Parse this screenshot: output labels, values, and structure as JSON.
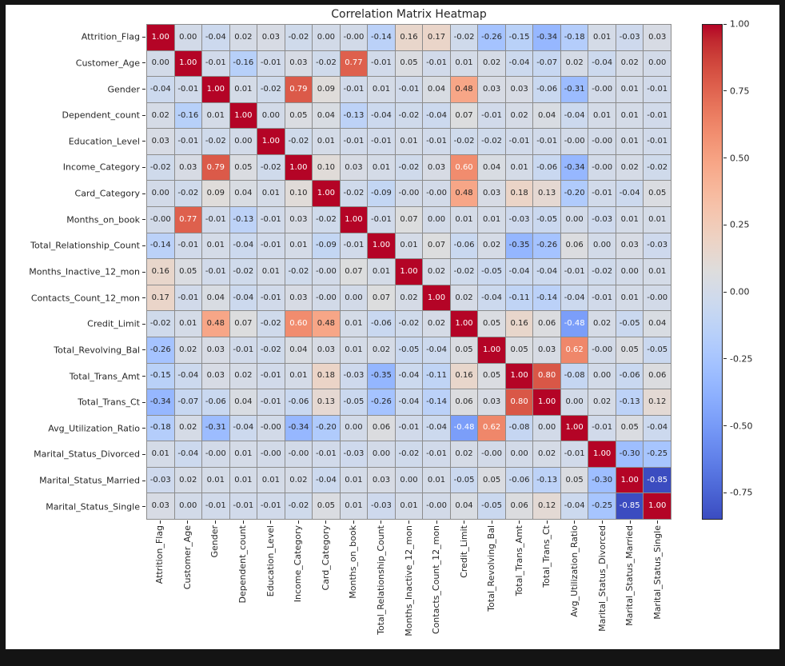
{
  "title": "Correlation Matrix Heatmap",
  "colors": {
    "figure_bg": "#ffffff",
    "frame_bg": "#141414",
    "grid_line": "#8c8c8c",
    "annotation_dark": "#262626",
    "annotation_light": "#ffffff",
    "cmap_min": "#3b4cc0",
    "cmap_mid": "#dddddd",
    "cmap_max": "#b40426"
  },
  "chart_data": {
    "type": "heatmap",
    "title": "Correlation Matrix Heatmap",
    "colormap": "coolwarm",
    "vmin": -0.85,
    "vmax": 1.0,
    "cell_format": ".2f",
    "legend_position": "right-colorbar",
    "colorbar_ticks": [
      "1.00",
      "0.75",
      "0.50",
      "0.25",
      "0.00",
      "-0.25",
      "-0.50",
      "-0.75"
    ],
    "labels": [
      "Attrition_Flag",
      "Customer_Age",
      "Gender",
      "Dependent_count",
      "Education_Level",
      "Income_Category",
      "Card_Category",
      "Months_on_book",
      "Total_Relationship_Count",
      "Months_Inactive_12_mon",
      "Contacts_Count_12_mon",
      "Credit_Limit",
      "Total_Revolving_Bal",
      "Total_Trans_Amt",
      "Total_Trans_Ct",
      "Avg_Utilization_Ratio",
      "Marital_Status_Divorced",
      "Marital_Status_Married",
      "Marital_Status_Single"
    ],
    "matrix": [
      [
        "1.00",
        "0.00",
        "-0.04",
        "0.02",
        "0.03",
        "-0.02",
        "0.00",
        "-0.00",
        "-0.14",
        "0.16",
        "0.17",
        "-0.02",
        "-0.26",
        "-0.15",
        "-0.34",
        "-0.18",
        "0.01",
        "-0.03",
        "0.03"
      ],
      [
        "0.00",
        "1.00",
        "-0.01",
        "-0.16",
        "-0.01",
        "0.03",
        "-0.02",
        "0.77",
        "-0.01",
        "0.05",
        "-0.01",
        "0.01",
        "0.02",
        "-0.04",
        "-0.07",
        "0.02",
        "-0.04",
        "0.02",
        "0.00"
      ],
      [
        "-0.04",
        "-0.01",
        "1.00",
        "0.01",
        "-0.02",
        "0.79",
        "0.09",
        "-0.01",
        "0.01",
        "-0.01",
        "0.04",
        "0.48",
        "0.03",
        "0.03",
        "-0.06",
        "-0.31",
        "-0.00",
        "0.01",
        "-0.01"
      ],
      [
        "0.02",
        "-0.16",
        "0.01",
        "1.00",
        "0.00",
        "0.05",
        "0.04",
        "-0.13",
        "-0.04",
        "-0.02",
        "-0.04",
        "0.07",
        "-0.01",
        "0.02",
        "0.04",
        "-0.04",
        "0.01",
        "0.01",
        "-0.01"
      ],
      [
        "0.03",
        "-0.01",
        "-0.02",
        "0.00",
        "1.00",
        "-0.02",
        "0.01",
        "-0.01",
        "-0.01",
        "0.01",
        "-0.01",
        "-0.02",
        "-0.02",
        "-0.01",
        "-0.01",
        "-0.00",
        "-0.00",
        "0.01",
        "-0.01"
      ],
      [
        "-0.02",
        "0.03",
        "0.79",
        "0.05",
        "-0.02",
        "1.00",
        "0.10",
        "0.03",
        "0.01",
        "-0.02",
        "0.03",
        "0.60",
        "0.04",
        "0.01",
        "-0.06",
        "-0.34",
        "-0.00",
        "0.02",
        "-0.02"
      ],
      [
        "0.00",
        "-0.02",
        "0.09",
        "0.04",
        "0.01",
        "0.10",
        "1.00",
        "-0.02",
        "-0.09",
        "-0.00",
        "-0.00",
        "0.48",
        "0.03",
        "0.18",
        "0.13",
        "-0.20",
        "-0.01",
        "-0.04",
        "0.05"
      ],
      [
        "-0.00",
        "0.77",
        "-0.01",
        "-0.13",
        "-0.01",
        "0.03",
        "-0.02",
        "1.00",
        "-0.01",
        "0.07",
        "0.00",
        "0.01",
        "0.01",
        "-0.03",
        "-0.05",
        "0.00",
        "-0.03",
        "0.01",
        "0.01"
      ],
      [
        "-0.14",
        "-0.01",
        "0.01",
        "-0.04",
        "-0.01",
        "0.01",
        "-0.09",
        "-0.01",
        "1.00",
        "0.01",
        "0.07",
        "-0.06",
        "0.02",
        "-0.35",
        "-0.26",
        "0.06",
        "0.00",
        "0.03",
        "-0.03"
      ],
      [
        "0.16",
        "0.05",
        "-0.01",
        "-0.02",
        "0.01",
        "-0.02",
        "-0.00",
        "0.07",
        "0.01",
        "1.00",
        "0.02",
        "-0.02",
        "-0.05",
        "-0.04",
        "-0.04",
        "-0.01",
        "-0.02",
        "0.00",
        "0.01"
      ],
      [
        "0.17",
        "-0.01",
        "0.04",
        "-0.04",
        "-0.01",
        "0.03",
        "-0.00",
        "0.00",
        "0.07",
        "0.02",
        "1.00",
        "0.02",
        "-0.04",
        "-0.11",
        "-0.14",
        "-0.04",
        "-0.01",
        "0.01",
        "-0.00"
      ],
      [
        "-0.02",
        "0.01",
        "0.48",
        "0.07",
        "-0.02",
        "0.60",
        "0.48",
        "0.01",
        "-0.06",
        "-0.02",
        "0.02",
        "1.00",
        "0.05",
        "0.16",
        "0.06",
        "-0.48",
        "0.02",
        "-0.05",
        "0.04"
      ],
      [
        "-0.26",
        "0.02",
        "0.03",
        "-0.01",
        "-0.02",
        "0.04",
        "0.03",
        "0.01",
        "0.02",
        "-0.05",
        "-0.04",
        "0.05",
        "1.00",
        "0.05",
        "0.03",
        "0.62",
        "-0.00",
        "0.05",
        "-0.05"
      ],
      [
        "-0.15",
        "-0.04",
        "0.03",
        "0.02",
        "-0.01",
        "0.01",
        "0.18",
        "-0.03",
        "-0.35",
        "-0.04",
        "-0.11",
        "0.16",
        "0.05",
        "1.00",
        "0.80",
        "-0.08",
        "0.00",
        "-0.06",
        "0.06"
      ],
      [
        "-0.34",
        "-0.07",
        "-0.06",
        "0.04",
        "-0.01",
        "-0.06",
        "0.13",
        "-0.05",
        "-0.26",
        "-0.04",
        "-0.14",
        "0.06",
        "0.03",
        "0.80",
        "1.00",
        "0.00",
        "0.02",
        "-0.13",
        "0.12"
      ],
      [
        "-0.18",
        "0.02",
        "-0.31",
        "-0.04",
        "-0.00",
        "-0.34",
        "-0.20",
        "0.00",
        "0.06",
        "-0.01",
        "-0.04",
        "-0.48",
        "0.62",
        "-0.08",
        "0.00",
        "1.00",
        "-0.01",
        "0.05",
        "-0.04"
      ],
      [
        "0.01",
        "-0.04",
        "-0.00",
        "0.01",
        "-0.00",
        "-0.00",
        "-0.01",
        "-0.03",
        "0.00",
        "-0.02",
        "-0.01",
        "0.02",
        "-0.00",
        "0.00",
        "0.02",
        "-0.01",
        "1.00",
        "-0.30",
        "-0.25"
      ],
      [
        "-0.03",
        "0.02",
        "0.01",
        "0.01",
        "0.01",
        "0.02",
        "-0.04",
        "0.01",
        "0.03",
        "0.00",
        "0.01",
        "-0.05",
        "0.05",
        "-0.06",
        "-0.13",
        "0.05",
        "-0.30",
        "1.00",
        "-0.85"
      ],
      [
        "0.03",
        "0.00",
        "-0.01",
        "-0.01",
        "-0.01",
        "-0.02",
        "0.05",
        "0.01",
        "-0.03",
        "0.01",
        "-0.00",
        "0.04",
        "-0.05",
        "0.06",
        "0.12",
        "-0.04",
        "-0.25",
        "-0.85",
        "1.00"
      ]
    ]
  }
}
